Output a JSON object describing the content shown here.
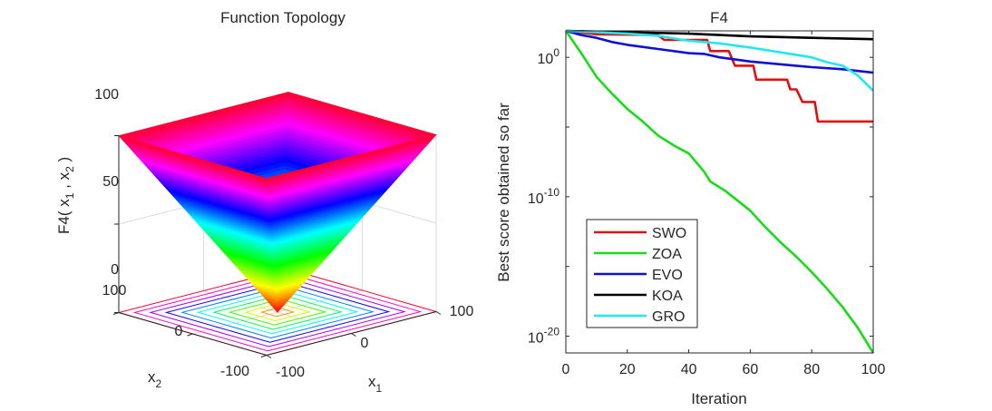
{
  "chart_data": [
    {
      "type": "surface3d",
      "title": "Function Topology",
      "function": "F4(x1, x2) = max(|x1|, |x2|)",
      "xlabel": "x1",
      "ylabel": "x2",
      "zlabel": "F4( x1 , x2 )",
      "xlim": [
        -100,
        100
      ],
      "ylim": [
        -100,
        100
      ],
      "zlim": [
        0,
        100
      ],
      "xticks": [
        "-100",
        "0",
        "100"
      ],
      "yticks": [
        "-100",
        "0",
        "100"
      ],
      "zticks": [
        "0",
        "50",
        "100"
      ],
      "contour_levels": [
        10,
        20,
        30,
        40,
        50,
        60,
        70,
        80,
        90,
        100
      ],
      "colormap": "hsv"
    },
    {
      "type": "line",
      "title": "F4",
      "xlabel": "Iteration",
      "ylabel": "Best score obtained so far",
      "yscale": "log",
      "xlim": [
        0,
        100
      ],
      "ylim_log10": [
        -21.2,
        1.9
      ],
      "xticks": [
        "0",
        "20",
        "40",
        "60",
        "80",
        "100"
      ],
      "yticks": [
        {
          "base": "10",
          "exp": "0",
          "log10": 0
        },
        {
          "base": "10",
          "exp": "-10",
          "log10": -10
        },
        {
          "base": "10",
          "exp": "-20",
          "log10": -20
        }
      ],
      "legend_position": "lower-left",
      "series": [
        {
          "name": "SWO",
          "color": "#e01010",
          "x": [
            0,
            10,
            30,
            32,
            46,
            47,
            53,
            55,
            61,
            62,
            72,
            73,
            75,
            77,
            81,
            82,
            100
          ],
          "log10": [
            1.9,
            1.65,
            1.6,
            1.25,
            1.25,
            0.45,
            0.45,
            -0.6,
            -0.6,
            -1.6,
            -1.6,
            -2.3,
            -2.3,
            -3.2,
            -3.2,
            -4.6,
            -4.6
          ]
        },
        {
          "name": "ZOA",
          "color": "#18dc18",
          "x": [
            0,
            5,
            10,
            15,
            20,
            25,
            30,
            35,
            40,
            45,
            47,
            52,
            60,
            65,
            70,
            75,
            80,
            85,
            90,
            95,
            100
          ],
          "log10": [
            1.9,
            0.3,
            -1.4,
            -2.6,
            -3.7,
            -4.6,
            -5.6,
            -6.3,
            -6.9,
            -8.2,
            -8.9,
            -9.6,
            -11.0,
            -12.2,
            -13.3,
            -14.3,
            -15.4,
            -16.6,
            -17.9,
            -19.4,
            -21.2
          ]
        },
        {
          "name": "EVO",
          "color": "#1010d0",
          "x": [
            0,
            5,
            10,
            15,
            20,
            30,
            40,
            45,
            50,
            60,
            70,
            80,
            90,
            100
          ],
          "log10": [
            1.9,
            1.6,
            1.4,
            1.1,
            0.9,
            0.6,
            0.3,
            0.25,
            0.0,
            -0.3,
            -0.5,
            -0.7,
            -0.85,
            -1.1
          ]
        },
        {
          "name": "KOA",
          "color": "#000000",
          "x": [
            0,
            10,
            20,
            40,
            60,
            80,
            100
          ],
          "log10": [
            1.9,
            1.85,
            1.8,
            1.7,
            1.5,
            1.4,
            1.3
          ]
        },
        {
          "name": "GRO",
          "color": "#20e8f0",
          "x": [
            0,
            10,
            20,
            30,
            38,
            40,
            50,
            60,
            70,
            80,
            85,
            90,
            95,
            100
          ],
          "log10": [
            1.9,
            1.8,
            1.7,
            1.55,
            1.25,
            1.2,
            1.0,
            0.7,
            0.35,
            0.0,
            -0.35,
            -0.6,
            -1.3,
            -2.4
          ]
        }
      ]
    }
  ]
}
